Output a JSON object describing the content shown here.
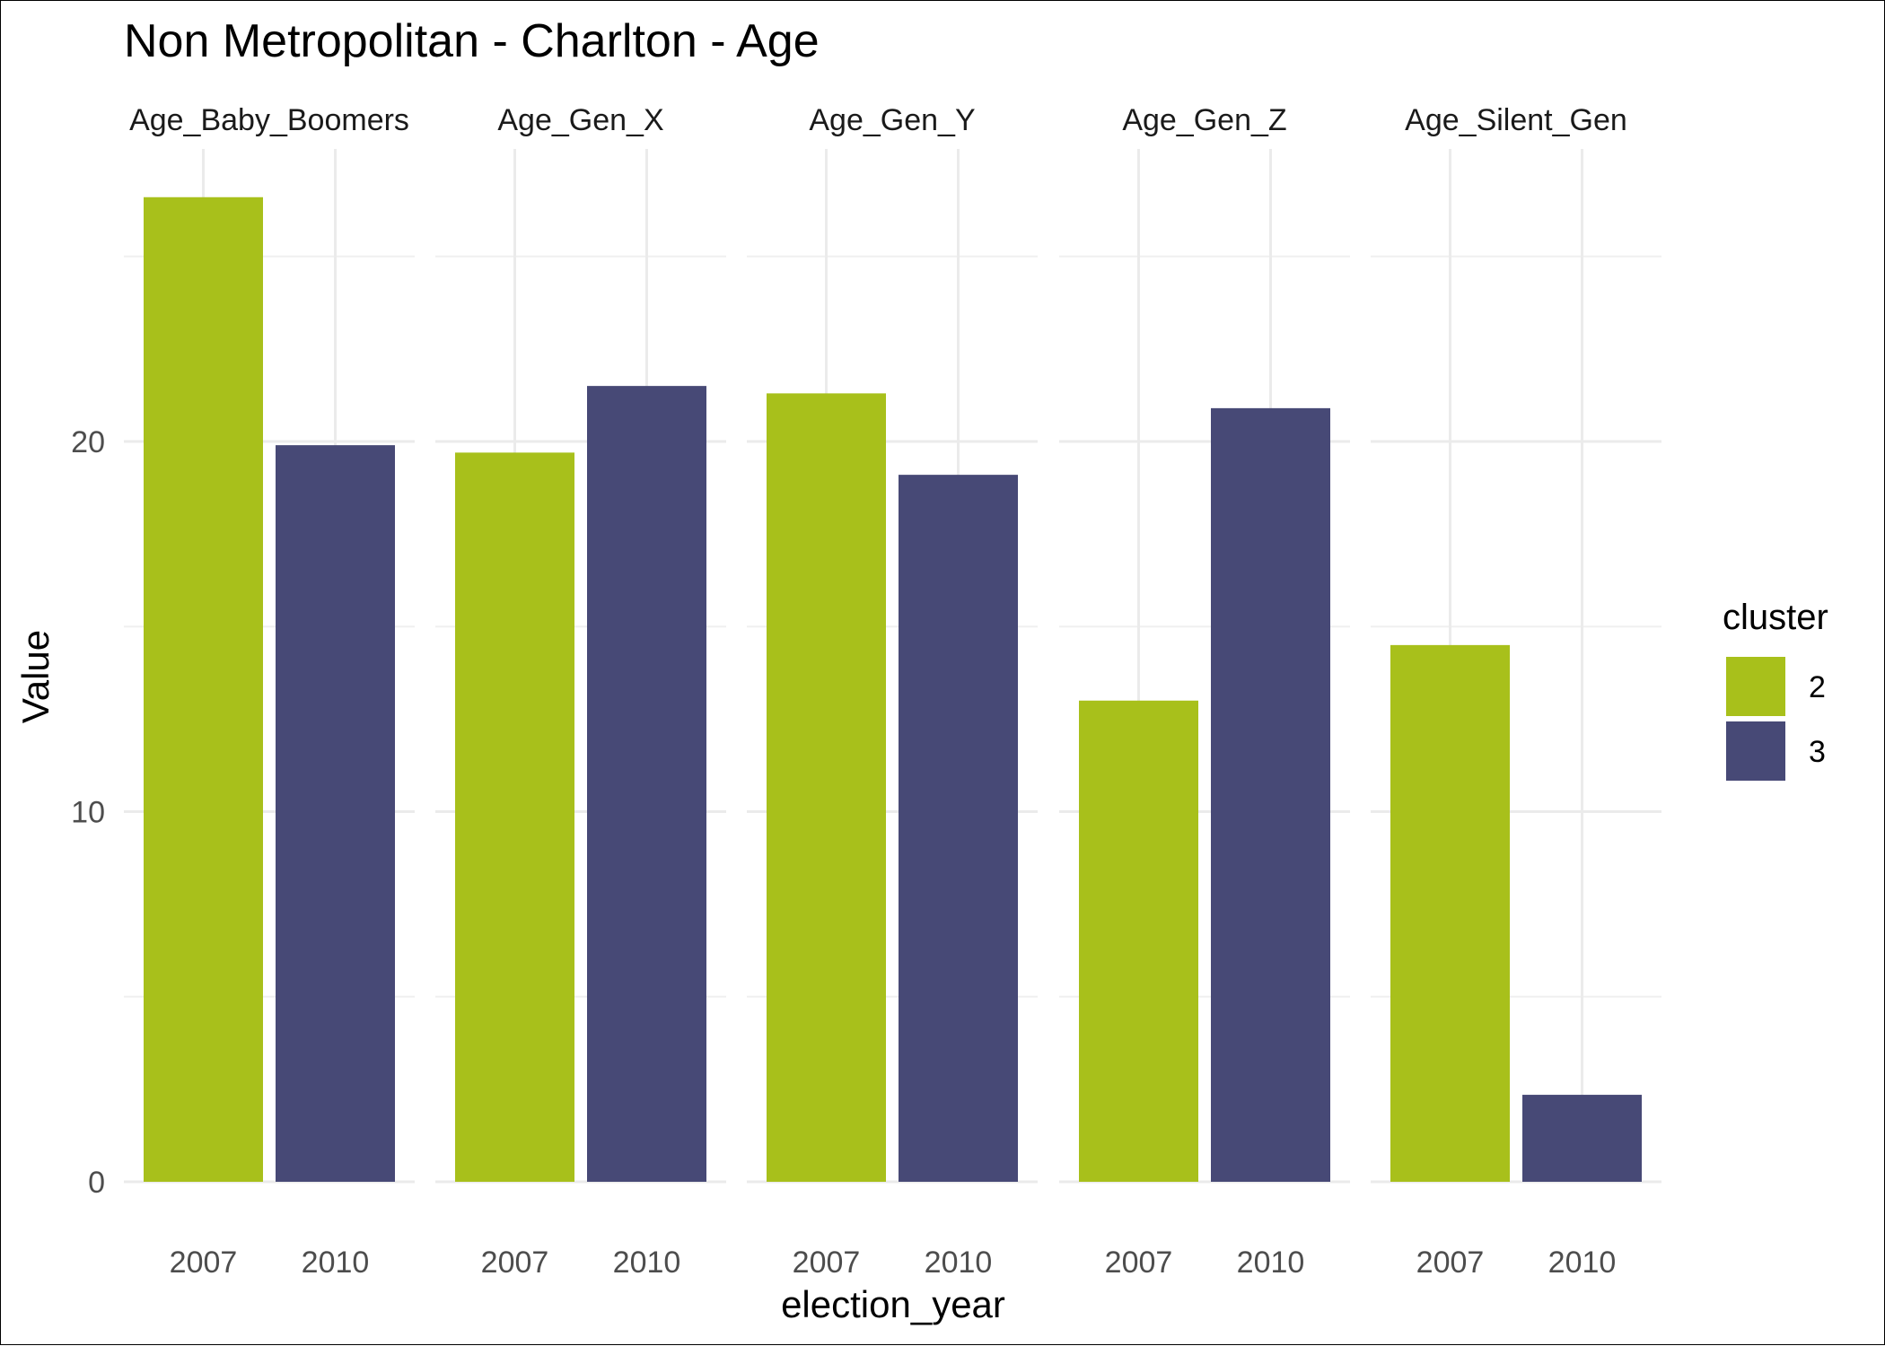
{
  "chart_data": {
    "type": "bar",
    "title": "Non Metropolitan - Charlton - Age",
    "xlabel": "election_year",
    "ylabel": "Value",
    "ylim": [
      0,
      27
    ],
    "yticks": [
      0,
      10,
      20
    ],
    "grid": true,
    "legend": {
      "title": "cluster",
      "position": "right",
      "entries": [
        {
          "label": "2",
          "color": "#a8c01b"
        },
        {
          "label": "3",
          "color": "#474976"
        }
      ]
    },
    "categories": [
      "2007",
      "2010"
    ],
    "facets": [
      {
        "name": "Age_Baby_Boomers",
        "values": [
          26.6,
          19.9
        ],
        "clusters": [
          "2",
          "3"
        ]
      },
      {
        "name": "Age_Gen_X",
        "values": [
          19.7,
          21.5
        ],
        "clusters": [
          "2",
          "3"
        ]
      },
      {
        "name": "Age_Gen_Y",
        "values": [
          21.3,
          19.1
        ],
        "clusters": [
          "2",
          "3"
        ]
      },
      {
        "name": "Age_Gen_Z",
        "values": [
          13.0,
          20.9
        ],
        "clusters": [
          "2",
          "3"
        ]
      },
      {
        "name": "Age_Silent_Gen",
        "values": [
          14.5,
          2.35
        ],
        "clusters": [
          "2",
          "3"
        ]
      }
    ]
  }
}
